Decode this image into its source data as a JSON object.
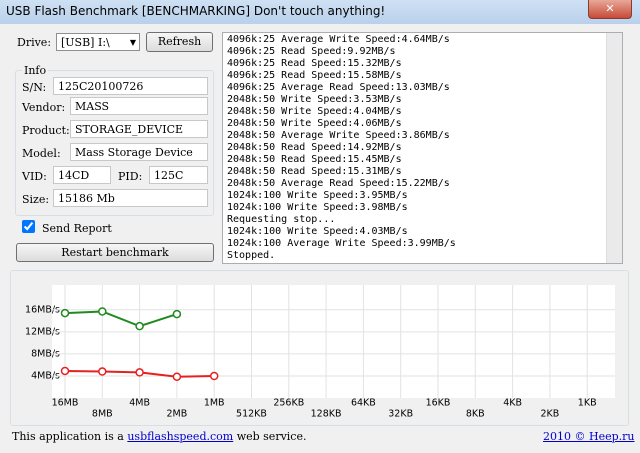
{
  "window": {
    "title": "USB Flash Benchmark [BENCHMARKING] Don't touch anything!"
  },
  "drive": {
    "label": "Drive:",
    "value": "[USB] I:\\",
    "button": "Refresh"
  },
  "info": {
    "title": "Info",
    "fields": [
      {
        "label": "S/N:",
        "value": "125C20100726"
      },
      {
        "label": "Vendor:",
        "value": "MASS"
      },
      {
        "label": "Product:",
        "value": "STORAGE_DEVICE"
      },
      {
        "label": "Model:",
        "value": "Mass Storage Device"
      }
    ],
    "vid": {
      "label": "VID:",
      "value": "14CD"
    },
    "pid": {
      "label": "PID:",
      "value": "125C"
    },
    "size": {
      "label": "Size:",
      "value": "15186 Mb"
    }
  },
  "send_report": {
    "label": "Send Report",
    "checked": true
  },
  "restart_button": "Restart benchmark",
  "log": [
    "4096k:25 Average Write Speed:4.64MB/s",
    "4096k:25 Read Speed:9.92MB/s",
    "4096k:25 Read Speed:15.32MB/s",
    "4096k:25 Read Speed:15.58MB/s",
    "4096k:25 Average Read Speed:13.03MB/s",
    "2048k:50 Write Speed:3.53MB/s",
    "2048k:50 Write Speed:4.04MB/s",
    "2048k:50 Write Speed:4.06MB/s",
    "2048k:50 Average Write Speed:3.86MB/s",
    "2048k:50 Read Speed:14.92MB/s",
    "2048k:50 Read Speed:15.45MB/s",
    "2048k:50 Read Speed:15.31MB/s",
    "2048k:50 Average Read Speed:15.22MB/s",
    "1024k:100 Write Speed:3.95MB/s",
    "1024k:100 Write Speed:3.98MB/s",
    "Requesting stop...",
    "1024k:100 Write Speed:4.03MB/s",
    "1024k:100 Average Write Speed:3.99MB/s",
    "Stopped."
  ],
  "chart_data": {
    "type": "line",
    "categories": [
      "16MB",
      "8MB",
      "4MB",
      "2MB",
      "1MB",
      "512KB",
      "256KB",
      "128KB",
      "64KB",
      "32KB",
      "16KB",
      "8KB",
      "4KB",
      "2KB",
      "1KB"
    ],
    "series": [
      {
        "color": "#1f8a1f",
        "values": [
          15.4,
          15.7,
          13.03,
          15.22,
          null,
          null,
          null,
          null,
          null,
          null,
          null,
          null,
          null,
          null,
          null
        ]
      },
      {
        "color": "#e62020",
        "values": [
          4.9,
          4.8,
          4.64,
          3.86,
          3.99,
          null,
          null,
          null,
          null,
          null,
          null,
          null,
          null,
          null,
          null
        ]
      }
    ],
    "ylim": [
      0,
      20.5
    ],
    "yticks": [
      {
        "value": 4,
        "label": "4MB/s"
      },
      {
        "value": 8,
        "label": "8MB/s"
      },
      {
        "value": 12,
        "label": "12MB/s"
      },
      {
        "value": 16,
        "label": "16MB/s"
      }
    ],
    "grid": true
  },
  "footer": {
    "text": "This application is a",
    "link": "usbflashspeed.com",
    "text_after": "web service.",
    "credit": "2010 © Heep.ru"
  }
}
